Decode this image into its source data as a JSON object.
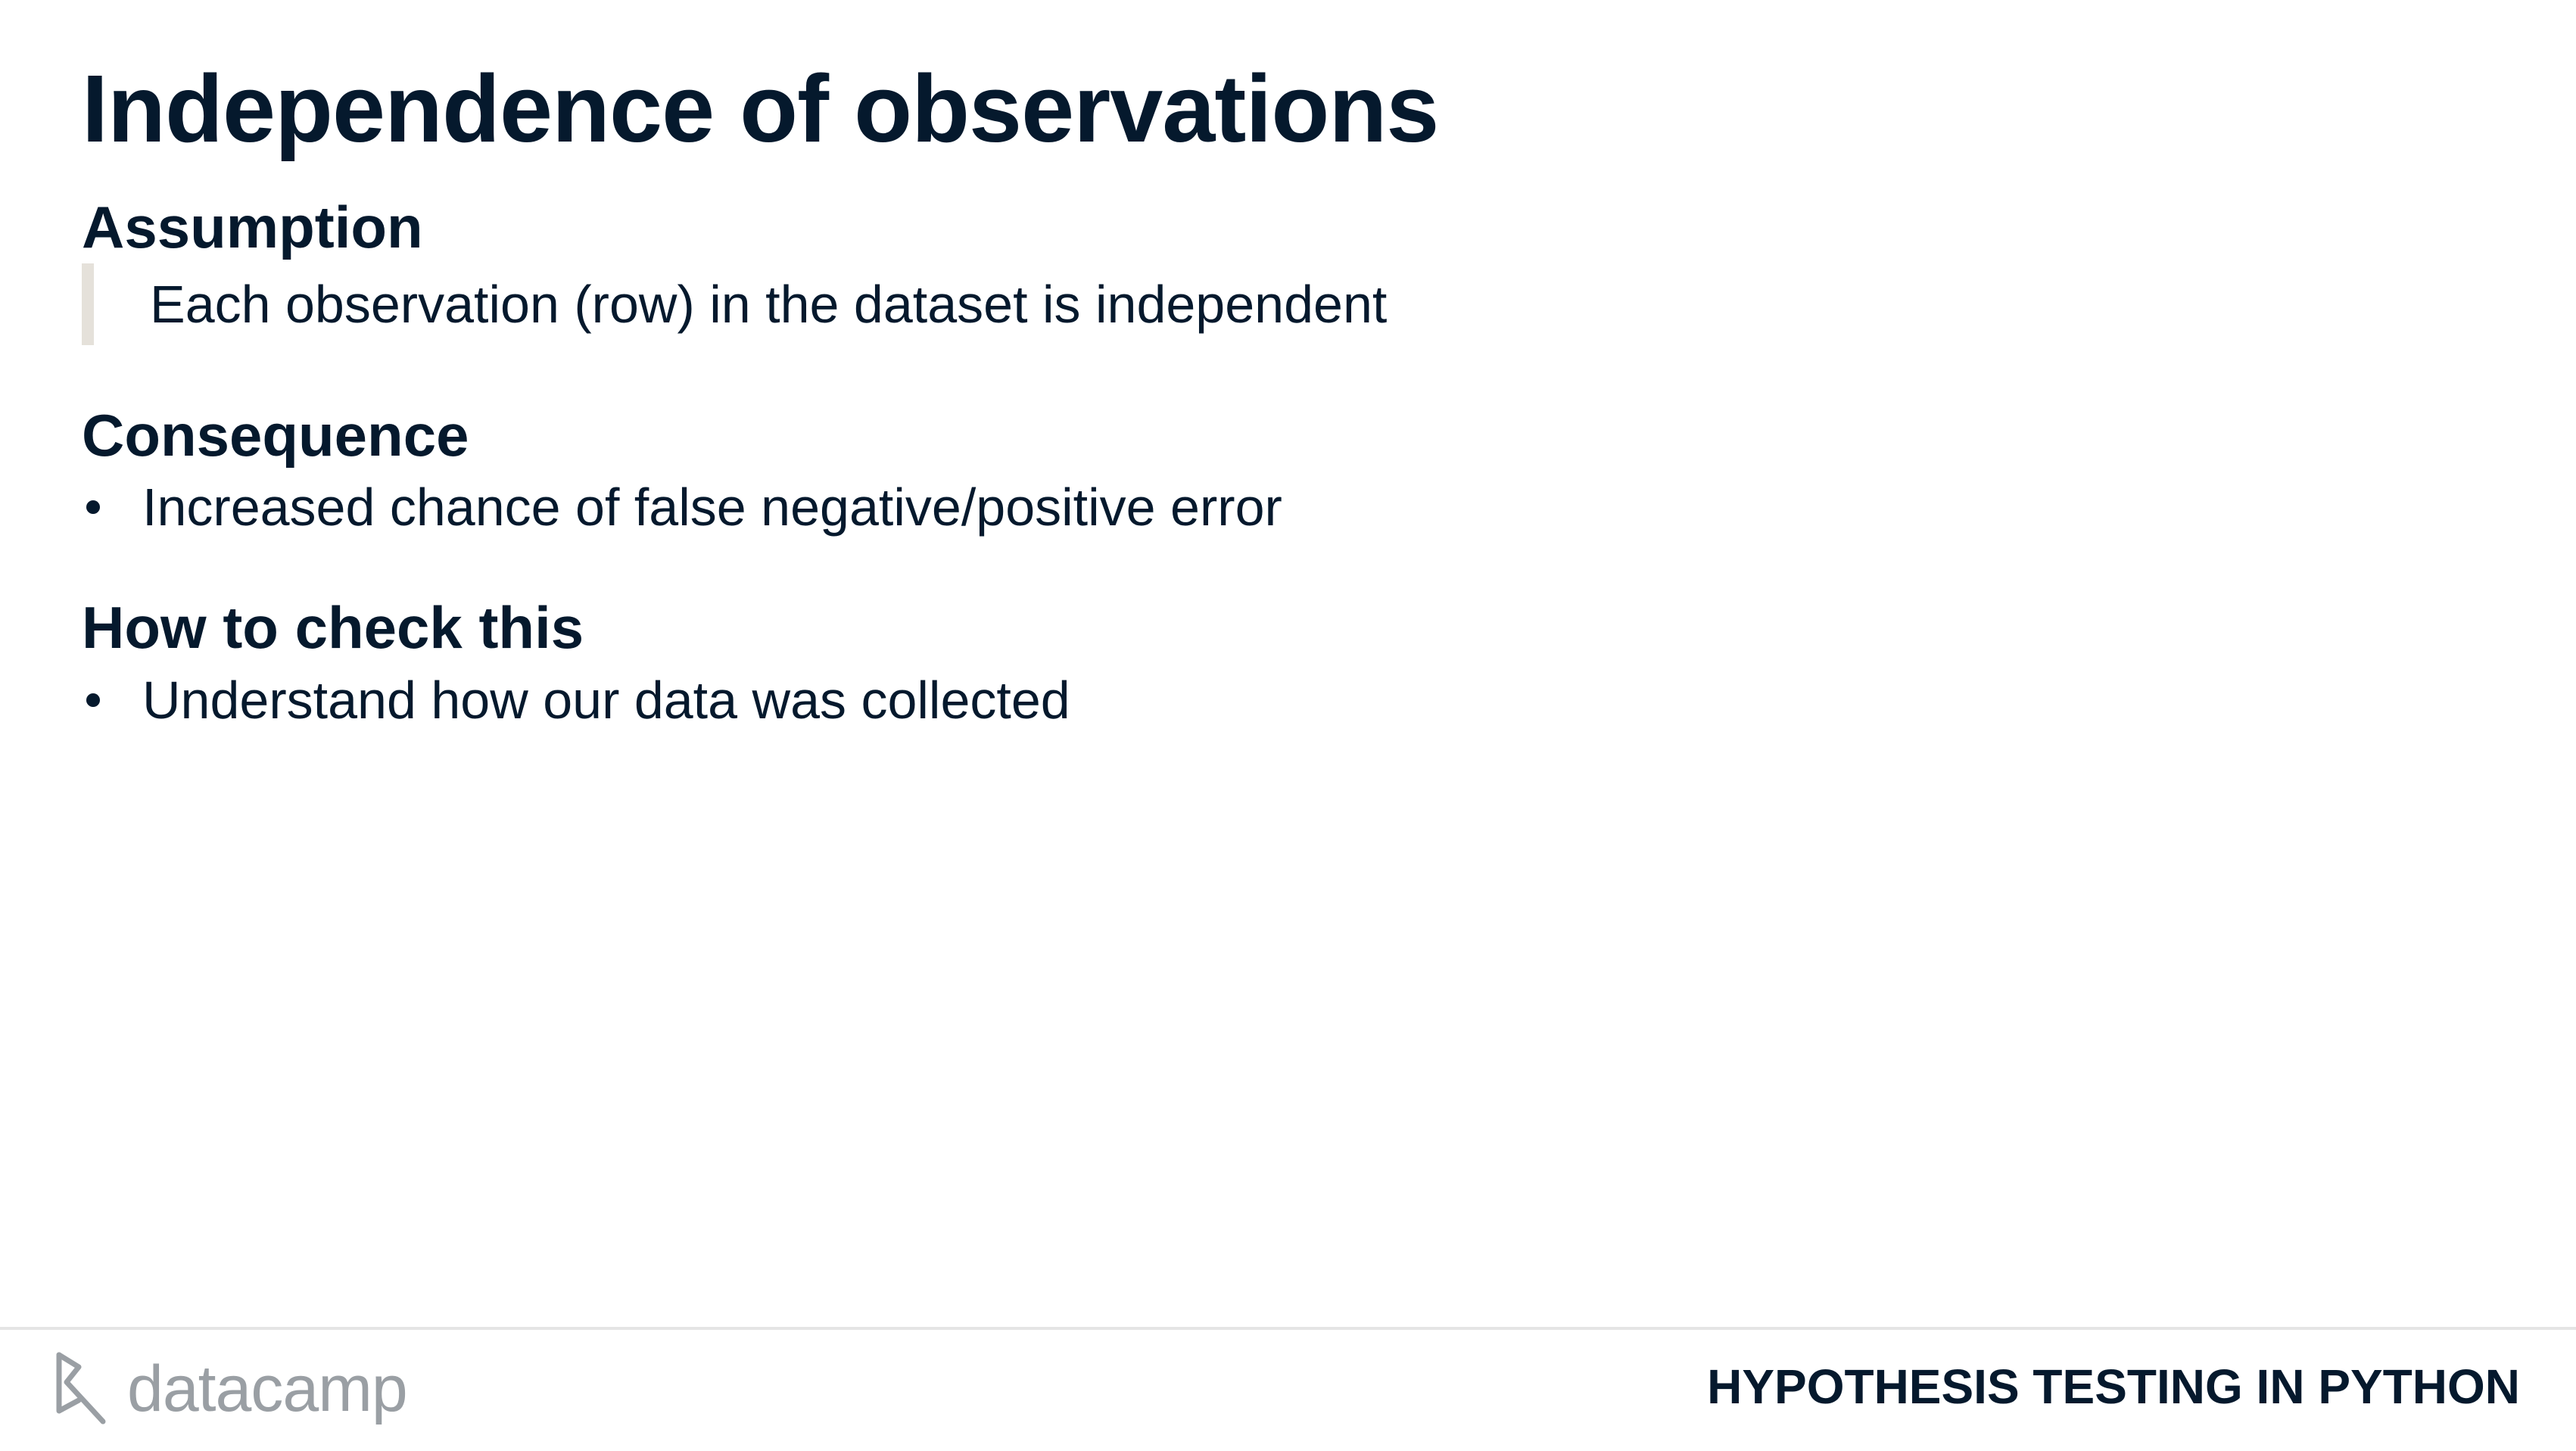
{
  "slide": {
    "title": "Independence of observations"
  },
  "sections": {
    "assumption": {
      "heading": "Assumption",
      "quote": "Each observation (row) in the dataset is independent"
    },
    "consequence": {
      "heading": "Consequence",
      "bullets": [
        "Increased chance of false negative/positive error"
      ]
    },
    "how_to_check": {
      "heading": "How to check this",
      "bullets": [
        "Understand how our data was collected"
      ]
    }
  },
  "footer": {
    "logo_text": "datacamp",
    "logo_icon": "datacamp-logo-icon",
    "course_title": "HYPOTHESIS TESTING IN PYTHON"
  },
  "colors": {
    "text": "#05192D",
    "quote_bar": "#E5E1DA",
    "logo": "#9A9FA4",
    "divider": "#E5E5E5"
  }
}
